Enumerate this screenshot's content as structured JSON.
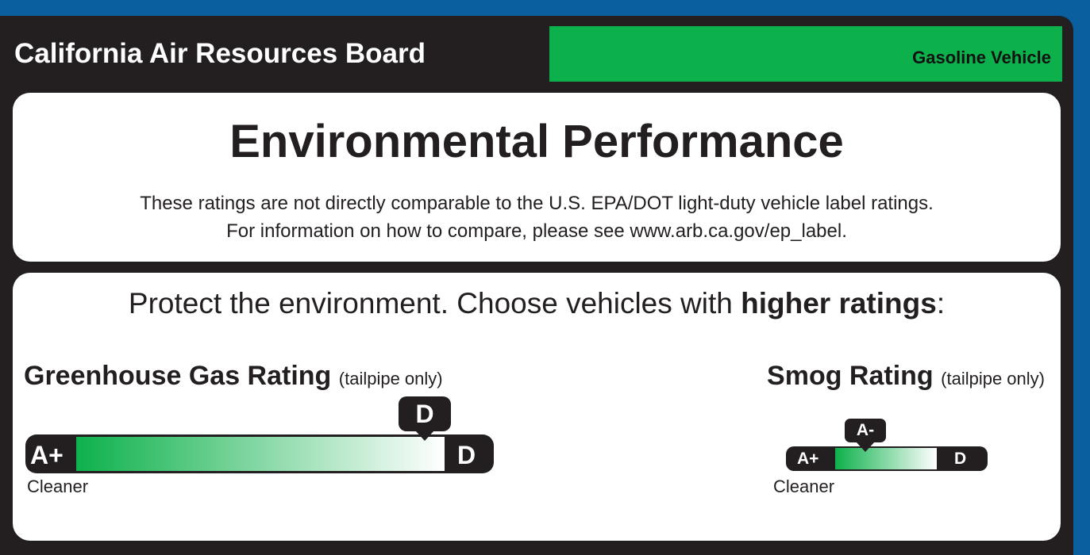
{
  "header": {
    "organization": "California Air Resources Board",
    "vehicle_type": "Gasoline Vehicle"
  },
  "title": "Environmental Performance",
  "notes": [
    "These ratings are not directly comparable to the U.S. EPA/DOT light-duty vehicle label ratings.",
    "For information on how to compare, please see www.arb.ca.gov/ep_label."
  ],
  "tagline": {
    "text": "Protect the environment. Choose vehicles with ",
    "emphasis": "higher ratings",
    "end": ":"
  },
  "ratings": [
    {
      "name": "Greenhouse Gas Rating",
      "qualifier": "(tailpipe only)",
      "best": "A+",
      "worst": "D",
      "rating": "D",
      "best_label": "Cleaner"
    },
    {
      "name": "Smog Rating",
      "qualifier": "(tailpipe only)",
      "best": "A+",
      "worst": "D",
      "rating": "A-",
      "best_label": "Cleaner"
    }
  ]
}
